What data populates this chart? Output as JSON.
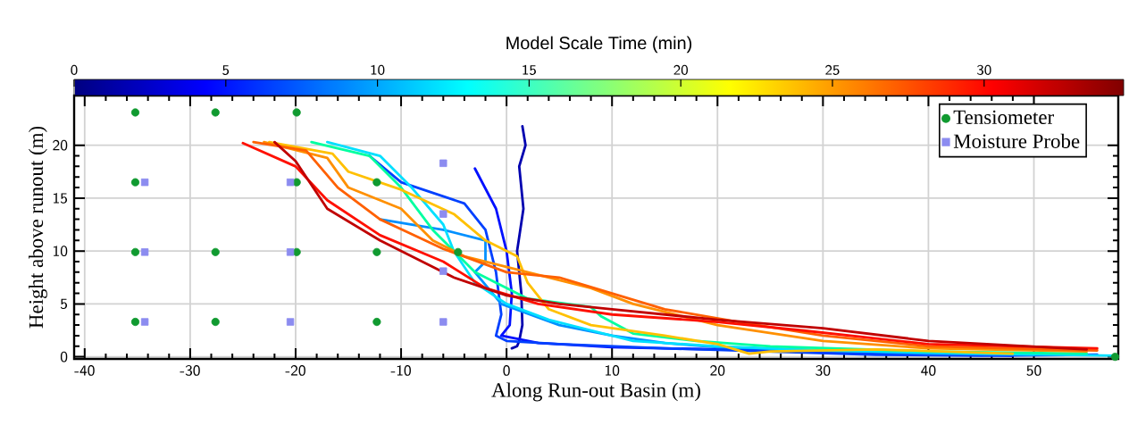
{
  "chart_data": {
    "type": "line",
    "xlabel": "Along Run-out Basin (m)",
    "ylabel": "Height above runout (m)",
    "clabel": "Model Scale Time (min)",
    "xlim": [
      -41,
      58
    ],
    "ylim": [
      -0.2,
      24.7
    ],
    "xticks": [
      -40,
      -30,
      -20,
      -10,
      0,
      10,
      20,
      30,
      40,
      50
    ],
    "yticks": [
      0,
      5,
      10,
      15,
      20
    ],
    "clim": [
      0,
      34.6
    ],
    "cticks": [
      0,
      5,
      10,
      15,
      20,
      25,
      30
    ],
    "grid": true,
    "legend": "top right",
    "line_style": "solid",
    "series": [
      {
        "color": "#0000b0",
        "x": [
          1.5,
          1.8,
          1.2,
          1.6,
          1.0,
          1.4,
          1.5,
          1.2,
          1.0,
          0.5
        ],
        "values": [
          21.8,
          20,
          18,
          14,
          10,
          6,
          3,
          1.5,
          1.0,
          0.8
        ]
      },
      {
        "color": "#0010ff",
        "x": [
          -3,
          -1,
          0,
          0.5,
          0.3,
          -0.5,
          3,
          10,
          20,
          30,
          40,
          48
        ],
        "values": [
          17.8,
          14,
          10,
          6,
          3,
          2,
          1.3,
          0.9,
          0.7,
          0.5,
          0.3,
          0.1
        ]
      },
      {
        "color": "#0040ff",
        "x": [
          -13,
          -10,
          -4,
          -2,
          -1,
          -0.5,
          -1,
          0,
          5,
          15,
          25,
          35,
          45,
          56
        ],
        "values": [
          19,
          16.5,
          14.5,
          12,
          8,
          4,
          2,
          1.5,
          1.2,
          0.8,
          0.5,
          0.2,
          0.1,
          0.2
        ]
      },
      {
        "color": "#0090ff",
        "x": [
          -12,
          -6,
          -2,
          -2,
          -3,
          -0.5,
          5,
          10,
          15,
          20,
          30,
          40,
          50
        ],
        "values": [
          13,
          12,
          11,
          9,
          8,
          5,
          3,
          2,
          1.3,
          0.9,
          0.6,
          0.3,
          0.2
        ]
      },
      {
        "color": "#00e0ff",
        "x": [
          -17,
          -12,
          -9,
          -6,
          -5,
          -3,
          0,
          4,
          8,
          12,
          20,
          30,
          45,
          58
        ],
        "values": [
          20.3,
          19,
          16,
          12.5,
          10,
          7,
          5,
          3.5,
          2.5,
          1.5,
          1.0,
          0.6,
          0.3,
          0.1
        ]
      },
      {
        "color": "#00ffa0",
        "x": [
          -18.5,
          -13,
          -10,
          -7,
          -3,
          2,
          8,
          9,
          12,
          18,
          25,
          40,
          55
        ],
        "values": [
          20.3,
          19,
          16,
          12,
          8,
          5.5,
          4.7,
          3.8,
          2.2,
          1.5,
          1.0,
          0.5,
          0.3
        ]
      },
      {
        "color": "#ffc000",
        "x": [
          -22.5,
          -16.5,
          -15,
          -10,
          -5,
          -2,
          1,
          2,
          4,
          8,
          15,
          20,
          23,
          25,
          35,
          48
        ],
        "values": [
          20.3,
          19.2,
          17.5,
          15.8,
          13.5,
          11,
          9.5,
          7,
          4.5,
          3,
          2,
          1.2,
          0.3,
          0.5,
          0.7,
          0.3
        ]
      },
      {
        "color": "#ff9000",
        "x": [
          -23,
          -17,
          -15,
          -10,
          -7,
          -4,
          2,
          8,
          12,
          20,
          30,
          40,
          55
        ],
        "values": [
          20.3,
          18.8,
          16,
          14,
          11,
          9.5,
          8,
          6.5,
          5,
          3,
          1.5,
          0.8,
          0.5
        ]
      },
      {
        "color": "#ff6000",
        "x": [
          -24,
          -19,
          -16,
          -12,
          -6,
          0,
          5,
          10,
          15,
          22,
          30,
          40,
          56
        ],
        "values": [
          20.3,
          19.5,
          16,
          13,
          10.2,
          8,
          7.5,
          6,
          4.5,
          3.3,
          2.0,
          1.0,
          0.6
        ]
      },
      {
        "color": "#ff1000",
        "x": [
          -25,
          -20,
          -17,
          -12,
          -6,
          -2,
          3,
          10,
          20,
          28,
          40,
          56
        ],
        "values": [
          20.2,
          18,
          14.8,
          11.5,
          9,
          6.5,
          5,
          4,
          3.3,
          2.5,
          1.2,
          0.8
        ]
      },
      {
        "color": "#c00000",
        "x": [
          -22,
          -20,
          -17,
          -12,
          -5,
          0,
          5,
          10,
          20,
          30,
          40,
          55
        ],
        "values": [
          20.3,
          18.5,
          14,
          11,
          7.5,
          5.8,
          5.0,
          4.5,
          3.5,
          2.7,
          1.5,
          0.7
        ]
      },
      {
        "type": "scatter",
        "name": "Tensiometer",
        "color": "#109a30",
        "marker": "circle",
        "x": [
          -35.2,
          -27.6,
          -19.9,
          -35.2,
          -19.9,
          -12.3,
          -35.2,
          -27.6,
          -19.9,
          -12.3,
          -4.6,
          -35.2,
          -27.6,
          -12.3,
          57.7
        ],
        "values": [
          23.1,
          23.1,
          23.1,
          16.5,
          16.5,
          16.5,
          9.9,
          9.9,
          9.9,
          9.9,
          9.9,
          3.3,
          3.3,
          3.3,
          0
        ]
      },
      {
        "type": "scatter",
        "name": "Moisture Probe",
        "color": "#8c8cf0",
        "marker": "square",
        "x": [
          -34.3,
          -20.5,
          -6.0,
          -6.0,
          -34.3,
          -20.5,
          -6.0,
          -34.3,
          -20.5,
          -6.0
        ],
        "values": [
          16.5,
          16.5,
          18.3,
          13.5,
          9.9,
          9.9,
          8.1,
          3.3,
          3.3,
          3.3
        ]
      }
    ]
  }
}
